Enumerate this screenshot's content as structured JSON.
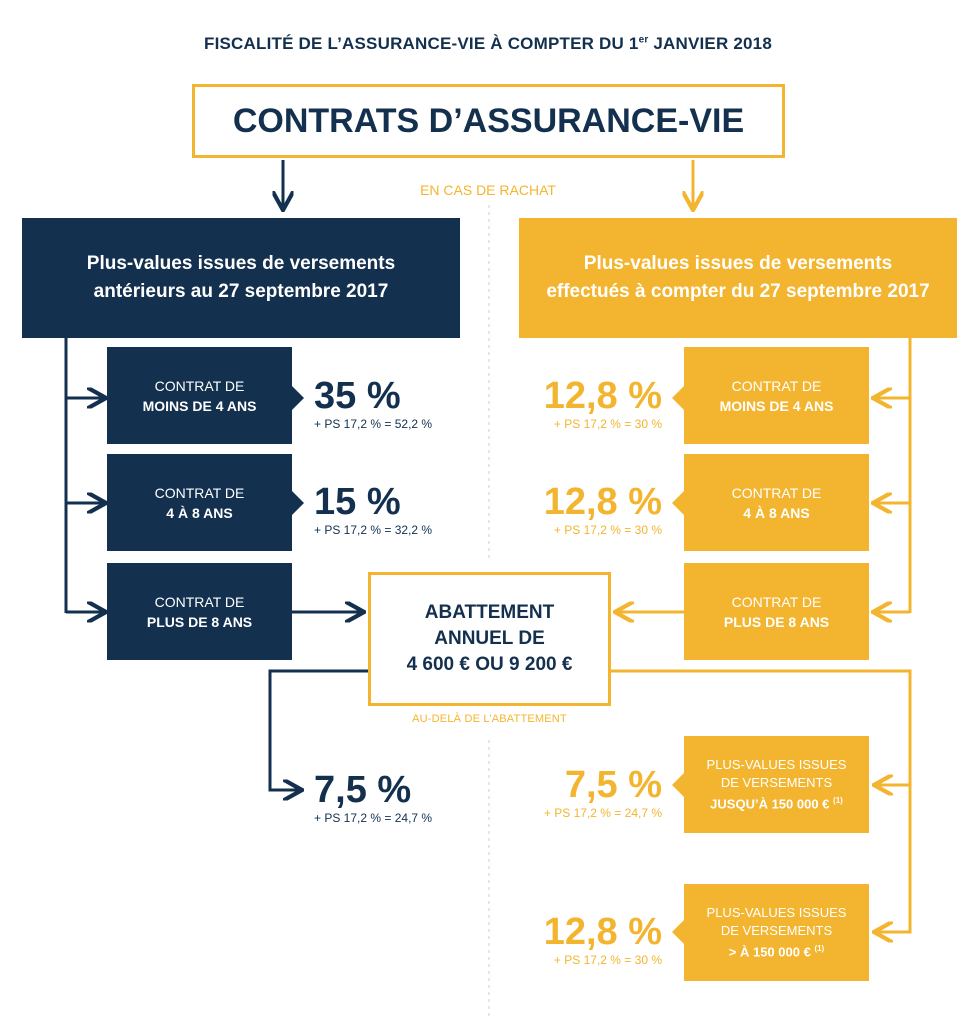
{
  "title": {
    "prefix": "FISCALITÉ DE L’ASSURANCE-VIE À COMPTER DU 1",
    "sup": "er",
    "suffix": " JANVIER 2018"
  },
  "main_box": "CONTRATS D’ASSURANCE-VIE",
  "rachat_label": "EN CAS DE RACHAT",
  "left": {
    "header": [
      "Plus-values issues de versements",
      "antérieurs au 27 septembre 2017"
    ],
    "boxes": [
      {
        "line1": "CONTRAT DE",
        "line2": "MOINS DE 4 ANS",
        "rate": "35 %",
        "sub": "+ PS 17,2 % = 52,2 %"
      },
      {
        "line1": "CONTRAT DE",
        "line2": "4 À 8 ANS",
        "rate": "15 %",
        "sub": "+ PS 17,2 % = 32,2 %"
      },
      {
        "line1": "CONTRAT DE",
        "line2": "PLUS DE 8 ANS"
      }
    ],
    "final": {
      "rate": "7,5 %",
      "sub": "+ PS 17,2 % = 24,7 %"
    }
  },
  "right": {
    "header": [
      "Plus-values issues de versements",
      "effectués à compter du 27 septembre 2017"
    ],
    "boxes": [
      {
        "line1": "CONTRAT DE",
        "line2": "MOINS DE 4 ANS",
        "rate": "12,8 %",
        "sub": "+ PS 17,2 % = 30 %"
      },
      {
        "line1": "CONTRAT DE",
        "line2": "4 À 8 ANS",
        "rate": "12,8 %",
        "sub": "+ PS 17,2 % = 30 %"
      },
      {
        "line1": "CONTRAT DE",
        "line2": "PLUS DE 8 ANS"
      }
    ],
    "lower": [
      {
        "line1": "PLUS-VALUES ISSUES",
        "line2": "DE VERSEMENTS",
        "line3": "JUSQU’À 150 000 €",
        "note": "(1)",
        "rate": "7,5 %",
        "sub": "+ PS 17,2 % = 24,7 %"
      },
      {
        "line1": "PLUS-VALUES ISSUES",
        "line2": "DE VERSEMENTS",
        "line3": "> À 150 000 €",
        "note": "(1)",
        "rate": "12,8 %",
        "sub": "+ PS 17,2 % = 30 %"
      }
    ]
  },
  "abattement": [
    "ABATTEMENT",
    "ANNUEL DE",
    "4 600 € OU 9 200 €"
  ],
  "au_dela_label": "AU-DELÀ DE L’ABATTEMENT",
  "colors": {
    "navy": "#13304f",
    "gold": "#f3b52f"
  }
}
